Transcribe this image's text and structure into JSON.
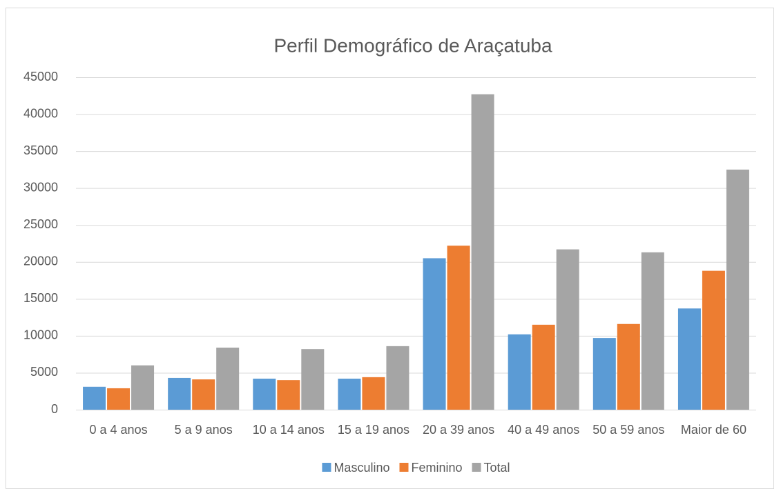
{
  "chart_data": {
    "type": "bar",
    "title": "Perfil Demográfico de Araçatuba",
    "categories": [
      "0 a 4 anos",
      "5 a 9 anos",
      "10 a 14 anos",
      "15 a 19 anos",
      "20 a 39 anos",
      "40 a 49 anos",
      "50 a 59 anos",
      "Maior de 60"
    ],
    "series": [
      {
        "name": "Masculino",
        "color": "#5b9bd5",
        "values": [
          3100,
          4300,
          4200,
          4200,
          20500,
          10200,
          9700,
          13700
        ]
      },
      {
        "name": "Feminino",
        "color": "#ed7d31",
        "values": [
          2900,
          4100,
          4000,
          4400,
          22200,
          11500,
          11600,
          18800
        ]
      },
      {
        "name": "Total",
        "color": "#a5a5a5",
        "values": [
          6000,
          8400,
          8200,
          8600,
          42700,
          21700,
          21300,
          32500
        ]
      }
    ],
    "ylim": [
      0,
      45000
    ],
    "yticks": [
      0,
      5000,
      10000,
      15000,
      20000,
      25000,
      30000,
      35000,
      40000,
      45000
    ],
    "grid": true,
    "legend": "bottom"
  }
}
